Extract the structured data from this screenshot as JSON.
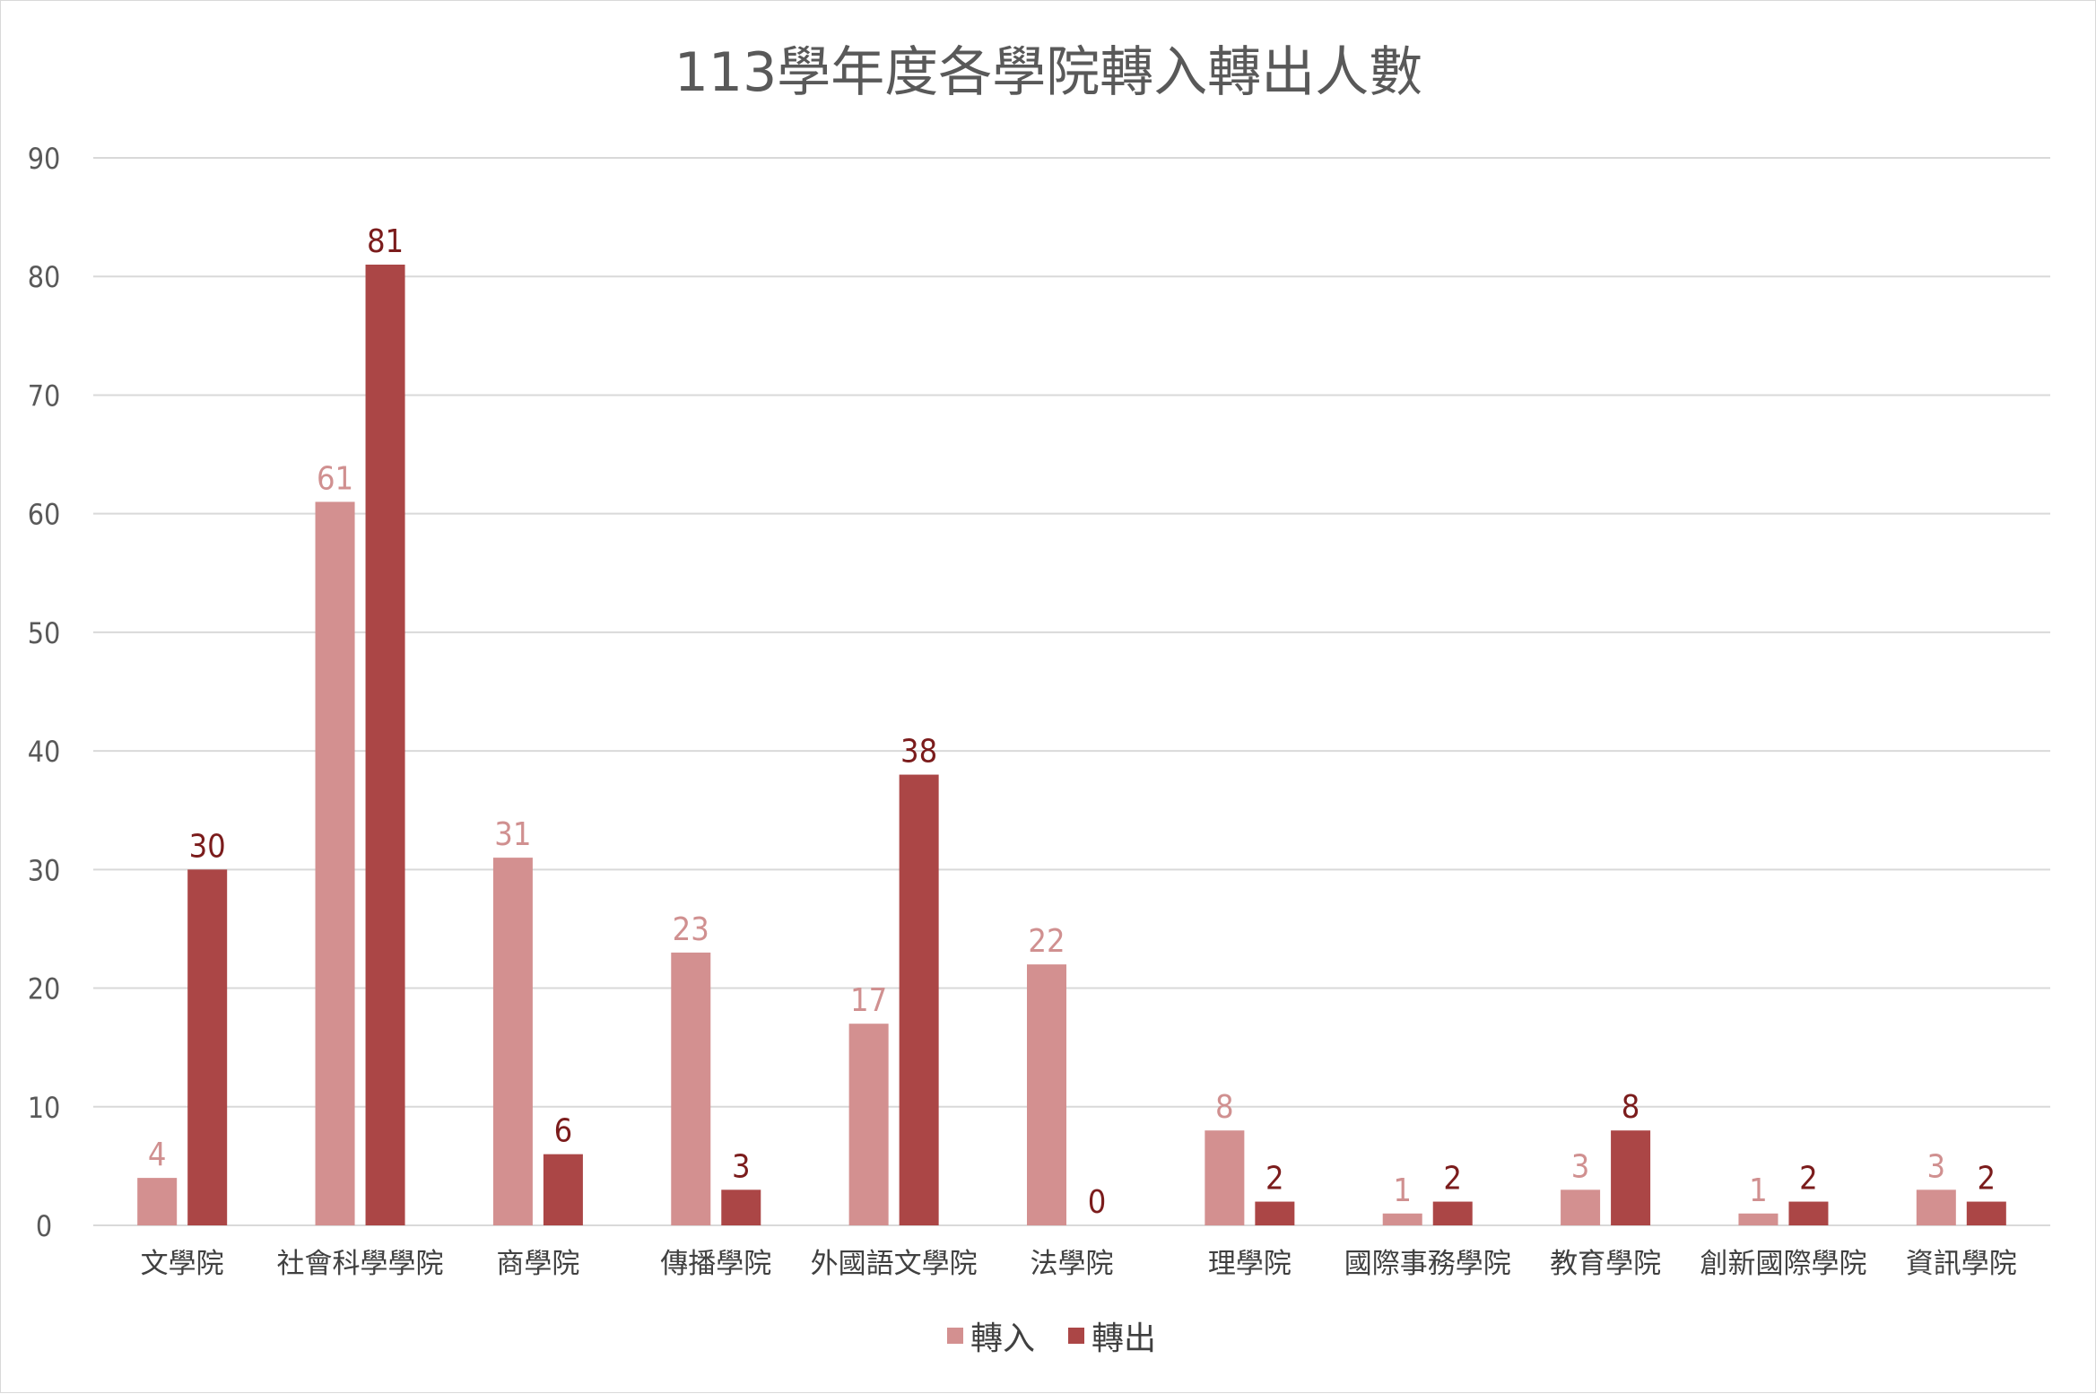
{
  "chart_data": {
    "type": "bar",
    "title": "113學年度各學院轉入轉出人數",
    "xlabel": "",
    "ylabel": "",
    "ylim": [
      0,
      90
    ],
    "yticks": [
      0,
      10,
      20,
      30,
      40,
      50,
      60,
      70,
      80,
      90
    ],
    "grid": true,
    "legend_position": "bottom",
    "categories": [
      "文學院",
      "社會科學學院",
      "商學院",
      "傳播學院",
      "外國語文學院",
      "法學院",
      "理學院",
      "國際事務學院",
      "教育學院",
      "創新國際學院",
      "資訊學院"
    ],
    "series": [
      {
        "name": "轉入",
        "color": "#d39090",
        "label_color": "#d09090",
        "values": [
          4,
          61,
          31,
          23,
          17,
          22,
          8,
          1,
          3,
          1,
          3
        ]
      },
      {
        "name": "轉出",
        "color": "#ab4646",
        "label_color": "#7b1c1c",
        "values": [
          30,
          81,
          6,
          3,
          38,
          0,
          2,
          2,
          8,
          2,
          2
        ]
      }
    ]
  }
}
